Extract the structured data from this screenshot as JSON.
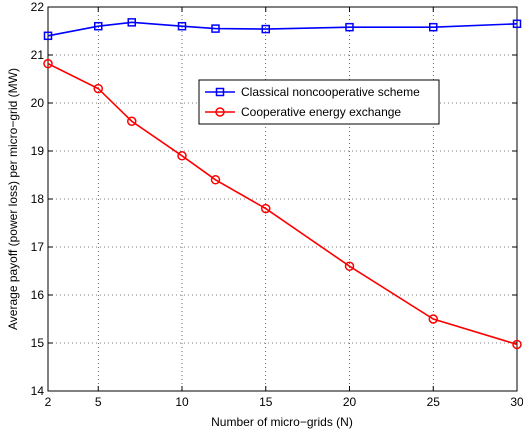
{
  "chart_data": {
    "type": "line",
    "xlabel": "Number of micro−grids (N)",
    "ylabel": "Average payoff (power loss) per micro−grid (MW)",
    "xlim": [
      2,
      30
    ],
    "ylim": [
      14,
      22
    ],
    "xticks": [
      2,
      5,
      10,
      15,
      20,
      25,
      30
    ],
    "yticks": [
      14,
      15,
      16,
      17,
      18,
      19,
      20,
      21,
      22
    ],
    "grid": true,
    "legend_position": "upper-right",
    "series": [
      {
        "name": "Classical noncooperative scheme",
        "color": "#0000ff",
        "marker": "square",
        "x": [
          2,
          5,
          7,
          10,
          12,
          15,
          20,
          25,
          30
        ],
        "y": [
          21.4,
          21.6,
          21.68,
          21.6,
          21.55,
          21.54,
          21.58,
          21.58,
          21.65
        ]
      },
      {
        "name": "Cooperative energy exchange",
        "color": "#ff0000",
        "marker": "circle",
        "x": [
          2,
          5,
          7,
          10,
          12,
          15,
          20,
          25,
          30
        ],
        "y": [
          20.82,
          20.3,
          19.62,
          18.9,
          18.4,
          17.8,
          16.6,
          15.5,
          14.97
        ]
      }
    ]
  }
}
